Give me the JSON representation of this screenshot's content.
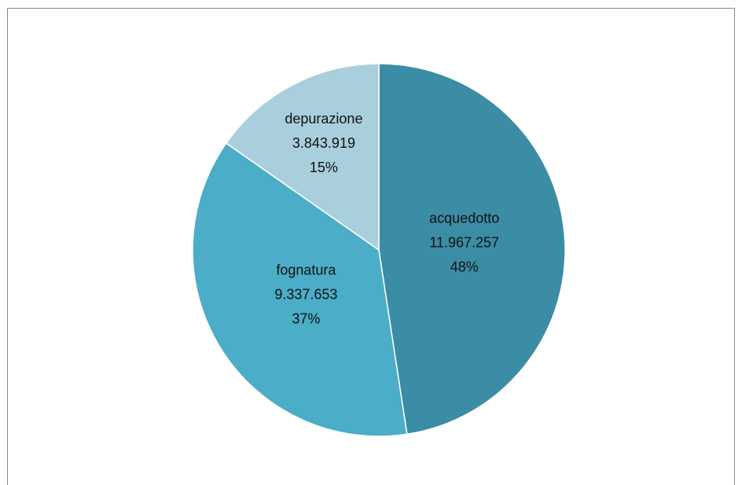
{
  "chart_data": {
    "type": "pie",
    "categories": [
      "acquedotto",
      "fognatura",
      "depurazione"
    ],
    "values": [
      11967257,
      9337653,
      3843919
    ],
    "value_labels": [
      "11.967.257",
      "9.337.653",
      "3.843.919"
    ],
    "percent_labels": [
      "48%",
      "37%",
      "15%"
    ],
    "colors": [
      "#3b8ca5",
      "#4badc7",
      "#a9cfdd"
    ]
  }
}
